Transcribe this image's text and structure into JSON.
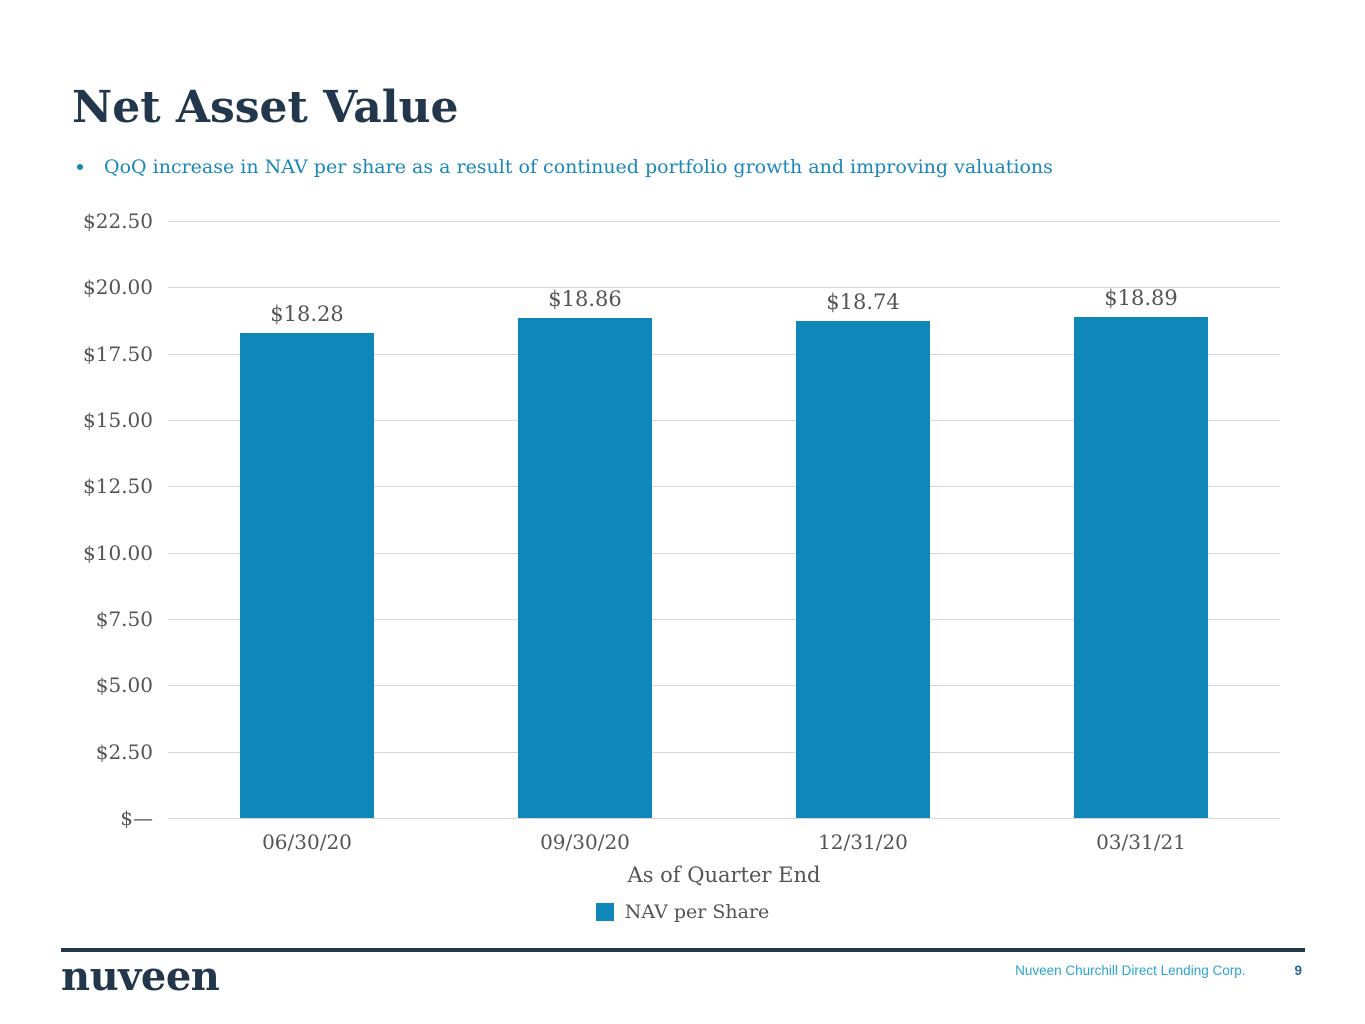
{
  "header": {
    "title": "Net Asset Value",
    "bullet": "QoQ increase in NAV per share as a result of continued portfolio growth and improving valuations"
  },
  "chart_data": {
    "type": "bar",
    "title": "",
    "categories": [
      "06/30/20",
      "09/30/20",
      "12/31/20",
      "03/31/21"
    ],
    "series": [
      {
        "name": "NAV per Share",
        "values": [
          18.28,
          18.86,
          18.74,
          18.89
        ]
      }
    ],
    "value_labels": [
      "$18.28",
      "$18.86",
      "$18.74",
      "$18.89"
    ],
    "xlabel": "As of Quarter End",
    "ylabel": "",
    "ylim": [
      0,
      22.5
    ],
    "y_ticks": [
      {
        "value": 22.5,
        "label": "$22.50"
      },
      {
        "value": 20.0,
        "label": "$20.00"
      },
      {
        "value": 17.5,
        "label": "$17.50"
      },
      {
        "value": 15.0,
        "label": "$15.00"
      },
      {
        "value": 12.5,
        "label": "$12.50"
      },
      {
        "value": 10.0,
        "label": "$10.00"
      },
      {
        "value": 7.5,
        "label": "$7.50"
      },
      {
        "value": 5.0,
        "label": "$5.00"
      },
      {
        "value": 2.5,
        "label": "$2.50"
      },
      {
        "value": 0,
        "label": "$—"
      }
    ],
    "grid": true,
    "legend": {
      "position": "bottom",
      "entries": [
        "NAV per Share"
      ]
    }
  },
  "footer": {
    "brand": "nuveen",
    "company": "Nuveen Churchill Direct Lending Corp.",
    "page_number": "9"
  },
  "colors": {
    "bar": "#0F87B9",
    "accent_text": "#1987B8",
    "title": "#22374B",
    "axis_text": "#545454",
    "gridline": "#D8D8D8",
    "footer_line": "#22374B",
    "footer_text": "#2BA4D0",
    "page_number": "#26688F"
  }
}
